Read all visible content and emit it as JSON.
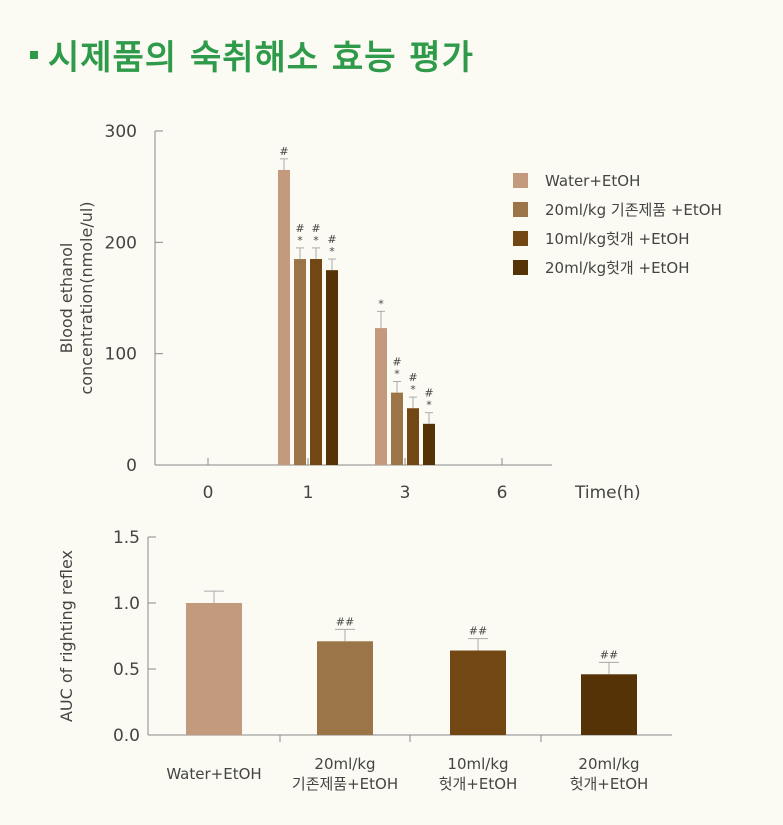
{
  "page": {
    "title": "시제품의 숙취해소 효능 평가"
  },
  "colors": {
    "title": "#2e9a4a",
    "series": [
      "#c49a7e",
      "#9b7448",
      "#734713",
      "#553306"
    ],
    "axis": "#888888"
  },
  "chart_data": [
    {
      "type": "bar",
      "title": "",
      "xlabel": "Time(h)",
      "ylabel": "Blood ethanol concentration(nmole/ul)",
      "categories": [
        "0",
        "1",
        "3",
        "6"
      ],
      "ylim": [
        0,
        300
      ],
      "yticks": [
        "0",
        "100",
        "200",
        "300"
      ],
      "series": [
        {
          "name": "Water+EtOH",
          "values": [
            null,
            265,
            123,
            null
          ],
          "errors": [
            null,
            10,
            15,
            null
          ],
          "marks": [
            null,
            "#",
            "*",
            null
          ]
        },
        {
          "name": "20ml/kg 기존제품 +EtOH",
          "values": [
            null,
            185,
            65,
            null
          ],
          "errors": [
            null,
            10,
            10,
            null
          ],
          "marks": [
            null,
            "#*",
            "#*",
            null
          ]
        },
        {
          "name": "10ml/kg헛개 +EtOH",
          "values": [
            null,
            185,
            51,
            null
          ],
          "errors": [
            null,
            10,
            10,
            null
          ],
          "marks": [
            null,
            "#*",
            "#*",
            null
          ]
        },
        {
          "name": "20ml/kg헛개 +EtOH",
          "values": [
            null,
            175,
            37,
            null
          ],
          "errors": [
            null,
            10,
            10,
            null
          ],
          "marks": [
            null,
            "#*",
            "#*",
            null
          ]
        }
      ],
      "legend": "top-right"
    },
    {
      "type": "bar",
      "title": "",
      "xlabel": "",
      "ylabel": "AUC of righting reflex",
      "categories": [
        "Water+EtOH",
        "20ml/kg\n기존제품+EtOH",
        "10ml/kg\n헛개+EtOH",
        "20ml/kg\n헛개+EtOH"
      ],
      "ylim": [
        0,
        1.5
      ],
      "yticks": [
        "0.0",
        "0.5",
        "1.0",
        "1.5"
      ],
      "values": [
        1.0,
        0.71,
        0.64,
        0.46
      ],
      "errors": [
        0.09,
        0.09,
        0.09,
        0.09
      ],
      "marks": [
        "",
        "##",
        "##",
        "##"
      ]
    }
  ]
}
